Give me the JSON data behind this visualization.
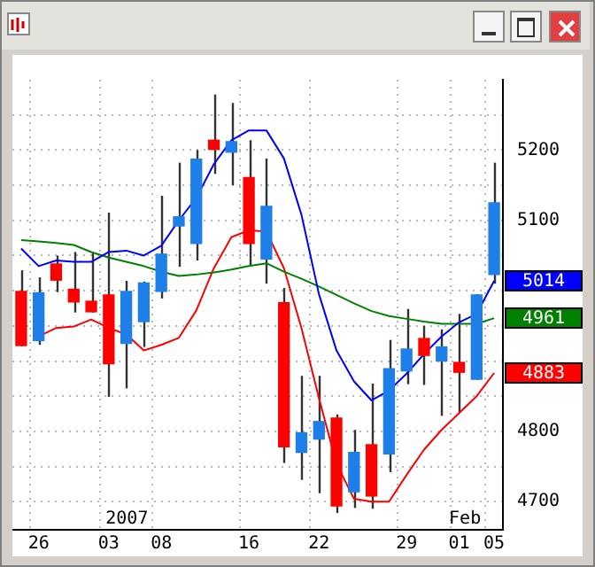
{
  "chart_data": {
    "type": "candlestick",
    "categories": [
      null,
      "26",
      null,
      null,
      null,
      "03",
      null,
      null,
      "08",
      null,
      null,
      null,
      null,
      "16",
      null,
      null,
      null,
      "22",
      null,
      null,
      null,
      null,
      "29",
      null,
      null,
      "01",
      null,
      "05"
    ],
    "ohlc": [
      [
        4999,
        5029,
        4921,
        4922
      ],
      [
        4929,
        5019,
        4923,
        4997
      ],
      [
        5038,
        5050,
        4998,
        5015
      ],
      [
        5002,
        5055,
        4969,
        4984
      ],
      [
        4985,
        5053,
        4969,
        4970
      ],
      [
        4994,
        5111,
        4849,
        4896
      ],
      [
        4925,
        5014,
        4861,
        4999
      ],
      [
        4956,
        5013,
        4920,
        5011
      ],
      [
        4999,
        5135,
        4989,
        5052
      ],
      [
        5092,
        5182,
        5034,
        5105
      ],
      [
        5067,
        5200,
        5043,
        5187
      ],
      [
        5214,
        5279,
        5166,
        5201
      ],
      [
        5197,
        5267,
        5150,
        5212
      ],
      [
        5161,
        5214,
        5036,
        5067
      ],
      [
        5045,
        5188,
        5010,
        5120
      ],
      [
        4983,
        5004,
        4755,
        4778
      ],
      [
        4770,
        4879,
        4731,
        4798
      ],
      [
        4789,
        4879,
        4712,
        4814
      ],
      [
        4819,
        4824,
        4684,
        4694
      ],
      [
        4714,
        4802,
        4691,
        4770
      ],
      [
        4781,
        4868,
        4690,
        4708
      ],
      [
        4768,
        4930,
        4742,
        4889
      ],
      [
        4886,
        4974,
        4867,
        4917
      ],
      [
        4932,
        4950,
        4866,
        4908
      ],
      [
        4900,
        4945,
        4822,
        4920
      ],
      [
        4898,
        4967,
        4826,
        4884
      ],
      [
        4874,
        4995,
        4873,
        4994
      ],
      [
        5023,
        5182,
        5010,
        5125
      ]
    ],
    "colors": [
      "#ff0000",
      "#1e7fe8",
      "#ff0000",
      "#ff0000",
      "#ff0000",
      "#ff0000",
      "#1e7fe8",
      "#1e7fe8",
      "#1e7fe8",
      "#1e7fe8",
      "#1e7fe8",
      "#ff0000",
      "#1e7fe8",
      "#ff0000",
      "#1e7fe8",
      "#ff0000",
      "#1e7fe8",
      "#1e7fe8",
      "#ff0000",
      "#1e7fe8",
      "#ff0000",
      "#1e7fe8",
      "#1e7fe8",
      "#ff0000",
      "#1e7fe8",
      "#ff0000",
      "#1e7fe8",
      "#1e7fe8"
    ],
    "series": [
      {
        "type": "line",
        "color": "#0000ff",
        "values": [
          5060,
          5035,
          5043,
          5041,
          5041,
          5055,
          5057,
          5050,
          5064,
          5100,
          5132,
          5180,
          5214,
          5228,
          5228,
          5188,
          5108,
          4995,
          4915,
          4871,
          4844,
          4858,
          4882,
          4910,
          4935,
          4955,
          4967,
          5014
        ],
        "value_labels": [
          null,
          null,
          null,
          null,
          null,
          null,
          null,
          null,
          null,
          null,
          null,
          null,
          null,
          null,
          null,
          null,
          null,
          null,
          null,
          null,
          null,
          null,
          null,
          null,
          null,
          null,
          null,
          "5014"
        ]
      },
      {
        "type": "line",
        "color": "#008000",
        "values": [
          5072,
          5070,
          5068,
          5065,
          5055,
          5047,
          5041,
          5035,
          5027,
          5021,
          5023,
          5026,
          5030,
          5035,
          5039,
          5027,
          5017,
          5006,
          4994,
          4982,
          4971,
          4964,
          4960,
          4956,
          4953,
          4953,
          4953,
          4961
        ],
        "value_labels": [
          null,
          null,
          null,
          null,
          null,
          null,
          null,
          null,
          null,
          null,
          null,
          null,
          null,
          null,
          null,
          null,
          null,
          null,
          null,
          null,
          null,
          null,
          null,
          null,
          null,
          null,
          null,
          "4961"
        ]
      },
      {
        "type": "line",
        "color": "#ff0000",
        "values": [
          null,
          4935,
          4947,
          4949,
          4959,
          4947,
          4938,
          4915,
          4923,
          4933,
          4972,
          5032,
          5076,
          5086,
          5084,
          5032,
          4947,
          4847,
          4754,
          4704,
          4700,
          4700,
          4738,
          4774,
          4802,
          4826,
          4850,
          4883
        ],
        "value_labels": [
          null,
          null,
          null,
          null,
          null,
          null,
          null,
          null,
          null,
          null,
          null,
          null,
          null,
          null,
          null,
          null,
          null,
          null,
          null,
          null,
          null,
          null,
          null,
          null,
          null,
          null,
          null,
          "4883"
        ]
      }
    ],
    "ylim": [
      4660,
      5300
    ],
    "yticks": [
      {
        "value": 4700,
        "label": "4700"
      },
      {
        "value": 4750,
        "label": null
      },
      {
        "value": 4800,
        "label": "4800"
      },
      {
        "value": 4850,
        "label": null
      },
      {
        "value": 4900,
        "label": null
      },
      {
        "value": 4950,
        "label": null
      },
      {
        "value": 5000,
        "label": null
      },
      {
        "value": 5050,
        "label": null
      },
      {
        "value": 5100,
        "label": "5100"
      },
      {
        "value": 5150,
        "label": null
      },
      {
        "value": 5200,
        "label": "5200"
      },
      {
        "value": 5250,
        "label": null
      }
    ],
    "grid": true,
    "annotations": [
      "2007",
      "Feb"
    ]
  }
}
